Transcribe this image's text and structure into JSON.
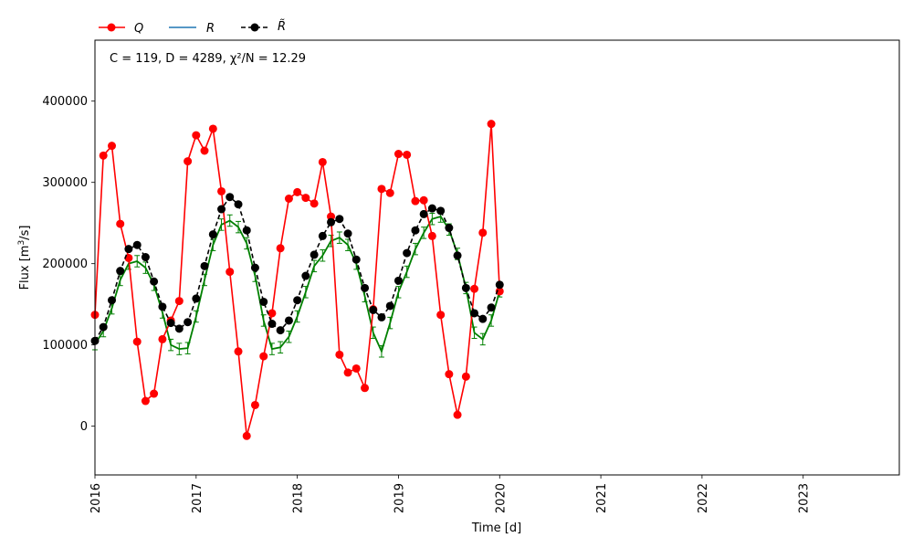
{
  "chart_data": {
    "type": "line",
    "xlabel": "Time [d]",
    "ylabel_main": "Flux [m",
    "ylabel_sup": "3",
    "ylabel_tail": "/s]",
    "annotation": "C = 119, D = 4289, χ²/N = 12.29",
    "legend_position": "top-left, above plot",
    "legend": [
      {
        "label": "Q",
        "color": "#ff0000",
        "style": "solid-marker"
      },
      {
        "label": "R",
        "color": "#1f77b4",
        "style": "solid"
      },
      {
        "label": "R̃",
        "color": "#000000",
        "style": "dashed-marker"
      }
    ],
    "xlim": [
      2016.0,
      2023.95
    ],
    "ylim": [
      -60000,
      475000
    ],
    "x_ticks": [
      2016,
      2017,
      2018,
      2019,
      2020,
      2021,
      2022,
      2023
    ],
    "x_tick_labels": [
      "2016",
      "2017",
      "2018",
      "2019",
      "2020",
      "2021",
      "2022",
      "2023"
    ],
    "y_ticks": [
      0,
      100000,
      200000,
      300000,
      400000
    ],
    "y_tick_labels": [
      "0",
      "100000",
      "200000",
      "300000",
      "400000"
    ],
    "x": [
      2016.0,
      2016.083,
      2016.167,
      2016.25,
      2016.333,
      2016.417,
      2016.5,
      2016.583,
      2016.667,
      2016.75,
      2016.833,
      2016.917,
      2017.0,
      2017.083,
      2017.167,
      2017.25,
      2017.333,
      2017.417,
      2017.5,
      2017.583,
      2017.667,
      2017.75,
      2017.833,
      2017.917,
      2018.0,
      2018.083,
      2018.167,
      2018.25,
      2018.333,
      2018.417,
      2018.5,
      2018.583,
      2018.667,
      2018.75,
      2018.833,
      2018.917,
      2019.0,
      2019.083,
      2019.167,
      2019.25,
      2019.333,
      2019.417,
      2019.5,
      2019.583,
      2019.667,
      2019.75,
      2019.833,
      2019.917,
      2020.0
    ],
    "series": [
      {
        "name": "Q",
        "color": "#ff0000",
        "values": [
          137000,
          333000,
          345000,
          249000,
          207000,
          104000,
          31000,
          40000,
          107000,
          130000,
          154000,
          326000,
          358000,
          339000,
          366000,
          289000,
          190000,
          92000,
          -12000,
          26000,
          86000,
          139000,
          219000,
          280000,
          288000,
          281000,
          274000,
          325000,
          258000,
          88000,
          66000,
          71000,
          47000,
          144000,
          292000,
          287000,
          335000,
          334000,
          277000,
          278000,
          234000,
          137000,
          64000,
          14000,
          61000,
          169000,
          238000,
          372000,
          166000
        ]
      },
      {
        "name": "R",
        "color": "#1f77b4",
        "values": [
          101000,
          117000,
          145000,
          180000,
          200000,
          203000,
          195000,
          174000,
          140000,
          100000,
          95000,
          96000,
          135000,
          180000,
          223000,
          248000,
          253000,
          245000,
          225000,
          185000,
          130000,
          95000,
          97000,
          110000,
          135000,
          165000,
          197000,
          210000,
          228000,
          232000,
          223000,
          200000,
          160000,
          115000,
          92000,
          127000,
          165000,
          190000,
          218000,
          238000,
          255000,
          258000,
          242000,
          212000,
          170000,
          115000,
          107000,
          130000,
          166000
        ]
      },
      {
        "name": "R̃",
        "color": "#000000",
        "values": [
          105000,
          122000,
          155000,
          191000,
          218000,
          223000,
          208000,
          178000,
          147000,
          127000,
          120000,
          128000,
          157000,
          197000,
          236000,
          267000,
          282000,
          273000,
          241000,
          195000,
          153000,
          126000,
          118000,
          130000,
          155000,
          185000,
          211000,
          234000,
          251000,
          255000,
          237000,
          205000,
          170000,
          143000,
          134000,
          148000,
          179000,
          213000,
          241000,
          261000,
          268000,
          265000,
          244000,
          210000,
          170000,
          139000,
          132000,
          146000,
          174000
        ]
      }
    ],
    "error_band": 7000
  }
}
